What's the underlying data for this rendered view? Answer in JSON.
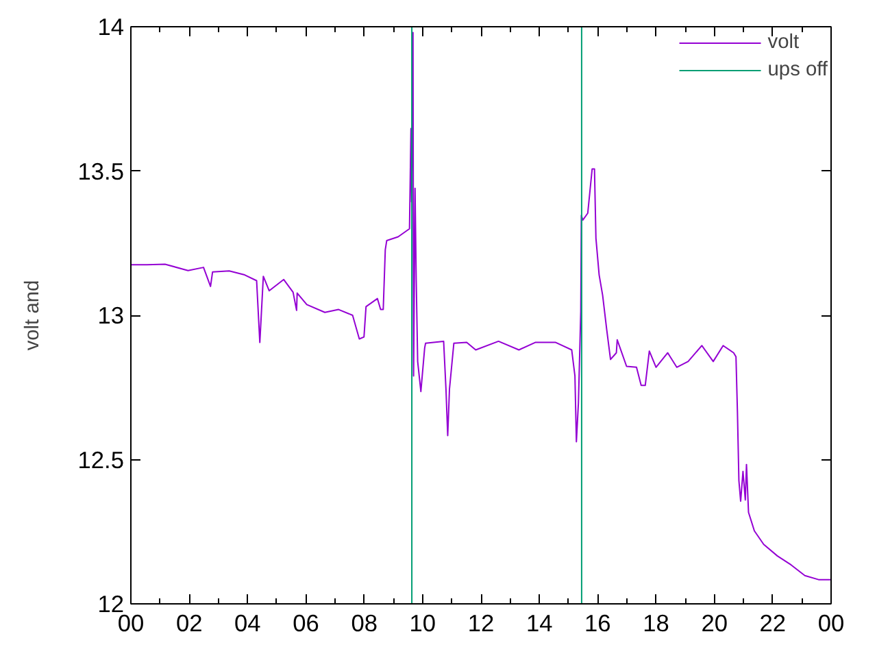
{
  "chart_data": {
    "type": "line",
    "ylabel": "volt and",
    "xlim": [
      0,
      24
    ],
    "xticks": [
      {
        "value": 0,
        "label": "00"
      },
      {
        "value": 2,
        "label": "02"
      },
      {
        "value": 4,
        "label": "04"
      },
      {
        "value": 6,
        "label": "06"
      },
      {
        "value": 8,
        "label": "08"
      },
      10,
      12,
      14,
      16,
      18,
      20,
      22,
      {
        "value": 24,
        "label": "00"
      }
    ],
    "ylim": [
      12,
      14
    ],
    "yticks": [
      12,
      12.5,
      13,
      13.5,
      14
    ],
    "grid": false,
    "legend": "top right",
    "line_style": "solid",
    "marker": "none",
    "series": [
      {
        "name": "volt",
        "color": "#9400d3",
        "x": [
          0,
          0.55,
          1.17,
          1.96,
          2.49,
          2.73,
          2.8,
          3.37,
          3.9,
          4.31,
          4.42,
          4.54,
          4.74,
          5.24,
          5.56,
          5.68,
          5.7,
          6.03,
          6.65,
          7.12,
          7.6,
          7.83,
          7.99,
          8.06,
          8.45,
          8.56,
          8.65,
          8.72,
          8.77,
          9.16,
          9.55,
          9.6,
          9.62,
          9.67,
          9.69,
          9.74,
          9.78,
          9.83,
          9.94,
          10.07,
          10.1,
          10.72,
          10.8,
          10.86,
          10.92,
          11.07,
          11.51,
          11.82,
          12.6,
          13.3,
          13.86,
          14.56,
          15.11,
          15.22,
          15.27,
          15.34,
          15.42,
          15.44,
          15.49,
          15.66,
          15.81,
          15.89,
          15.94,
          16.05,
          16.17,
          16.31,
          16.44,
          16.64,
          16.67,
          16.99,
          17.33,
          17.49,
          17.63,
          17.77,
          18.0,
          18.4,
          18.71,
          19.1,
          19.57,
          19.96,
          20.3,
          20.66,
          20.74,
          20.79,
          20.84,
          20.9,
          20.98,
          21.06,
          21.1,
          21.17,
          21.37,
          21.69,
          22.16,
          22.63,
          23.1,
          23.57,
          24
        ],
        "values": [
          13.175,
          13.175,
          13.177,
          13.155,
          13.166,
          13.1,
          13.15,
          13.154,
          13.14,
          13.12,
          12.906,
          13.135,
          13.085,
          13.124,
          13.08,
          13.017,
          13.077,
          13.037,
          13.01,
          13.02,
          13.0,
          12.918,
          12.925,
          13.03,
          13.058,
          13.02,
          13.02,
          13.227,
          13.259,
          13.272,
          13.3,
          13.647,
          13.393,
          13.98,
          12.79,
          13.44,
          13.124,
          12.84,
          12.736,
          12.887,
          12.903,
          12.91,
          12.744,
          12.583,
          12.744,
          12.903,
          12.906,
          12.88,
          12.91,
          12.88,
          12.906,
          12.906,
          12.88,
          12.79,
          12.562,
          12.697,
          13.013,
          13.346,
          13.33,
          13.354,
          13.507,
          13.507,
          13.267,
          13.14,
          13.069,
          12.95,
          12.847,
          12.87,
          12.915,
          12.823,
          12.82,
          12.757,
          12.757,
          12.876,
          12.82,
          12.87,
          12.82,
          12.84,
          12.895,
          12.84,
          12.895,
          12.87,
          12.856,
          12.665,
          12.427,
          12.356,
          12.459,
          12.36,
          12.483,
          12.317,
          12.253,
          12.206,
          12.166,
          12.135,
          12.098,
          12.084,
          12.084
        ]
      },
      {
        "name": "ups off",
        "color": "#009e73",
        "x": [
          0,
          9.63,
          9.63,
          9.63,
          15.45,
          15.45,
          15.45,
          24
        ],
        "values": [
          12,
          12,
          14,
          12,
          12,
          14,
          12,
          12
        ]
      }
    ]
  }
}
